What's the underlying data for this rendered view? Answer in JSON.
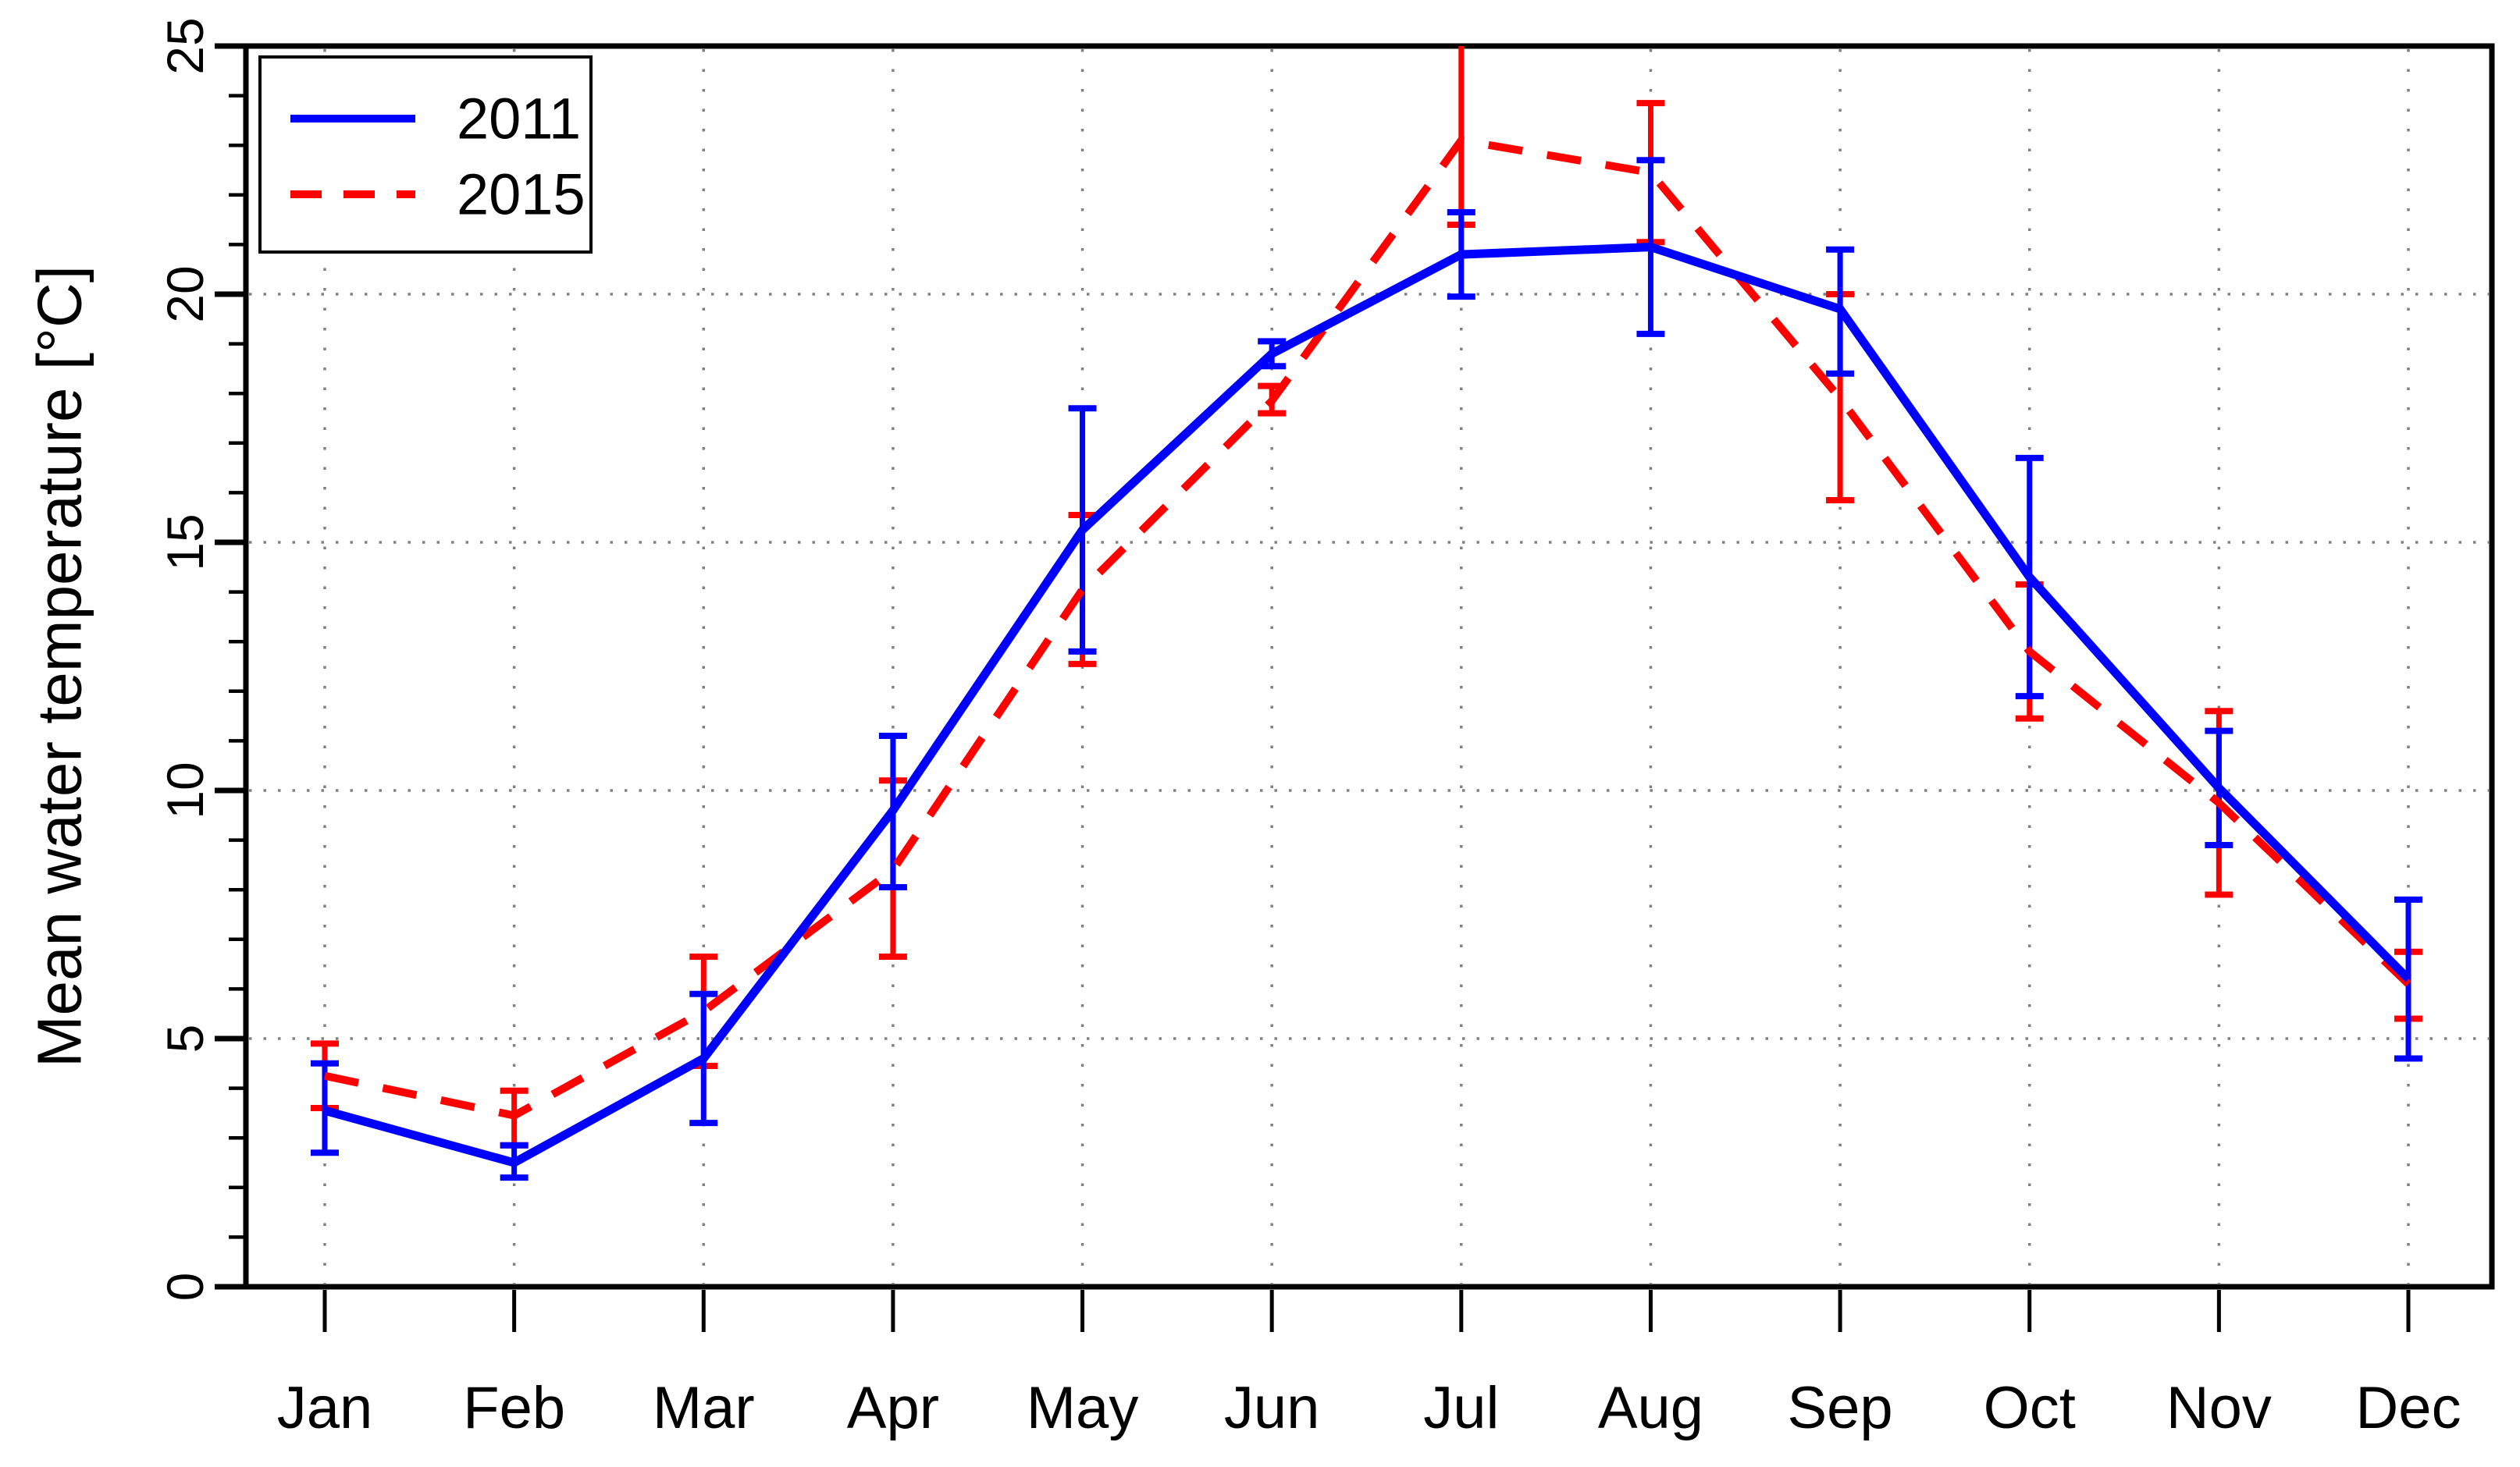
{
  "figure": {
    "background": "#ffffff",
    "axis_color": "#000000",
    "grid_color": "#808080"
  },
  "chart_data": {
    "type": "line",
    "title": "",
    "xlabel": "",
    "ylabel": "Mean water temperature [°C]",
    "ylim": [
      0,
      25
    ],
    "yticks": [
      0,
      5,
      10,
      15,
      20,
      25
    ],
    "y_minor_tick_step": 1,
    "grid": "dotted horizontal lines at 5,10,15,20 and dotted vertical line at each month",
    "legend_position": "top-left",
    "legend_border": true,
    "error_bars": true,
    "categories": [
      "Jan",
      "Feb",
      "Mar",
      "Apr",
      "May",
      "Jun",
      "Jul",
      "Aug",
      "Sep",
      "Oct",
      "Nov",
      "Dec"
    ],
    "series": [
      {
        "name": "2015",
        "color": "#ff0000",
        "style": "dashed",
        "values": [
          4.25,
          3.45,
          5.55,
          8.4,
          14.05,
          17.85,
          23.1,
          22.45,
          17.9,
          12.8,
          9.75,
          6.1
        ],
        "err_lo": [
          3.6,
          2.85,
          4.45,
          6.65,
          12.55,
          17.6,
          21.4,
          21.05,
          15.85,
          11.45,
          7.9,
          5.4
        ],
        "err_hi": [
          4.9,
          3.95,
          6.65,
          10.2,
          15.55,
          18.15,
          25.0,
          23.85,
          20.0,
          14.15,
          11.6,
          6.75
        ],
        "note": "July upper error bar is clipped at the top axis (25 °C), no top cap drawn"
      },
      {
        "name": "2011",
        "color": "#0000ff",
        "style": "solid",
        "values": [
          3.55,
          2.5,
          4.6,
          9.6,
          15.25,
          18.8,
          20.8,
          20.95,
          19.7,
          14.3,
          10.05,
          6.2
        ],
        "err_lo": [
          2.7,
          2.2,
          3.3,
          8.05,
          12.8,
          18.55,
          19.95,
          19.2,
          18.4,
          11.9,
          8.9,
          4.6
        ],
        "err_hi": [
          4.5,
          2.85,
          5.9,
          11.1,
          17.7,
          19.05,
          21.65,
          22.7,
          20.9,
          16.7,
          11.2,
          7.8
        ]
      }
    ],
    "legend_items": [
      {
        "label": "2011",
        "color": "#0000ff",
        "style": "solid"
      },
      {
        "label": "2015",
        "color": "#ff0000",
        "style": "dashed"
      }
    ]
  }
}
